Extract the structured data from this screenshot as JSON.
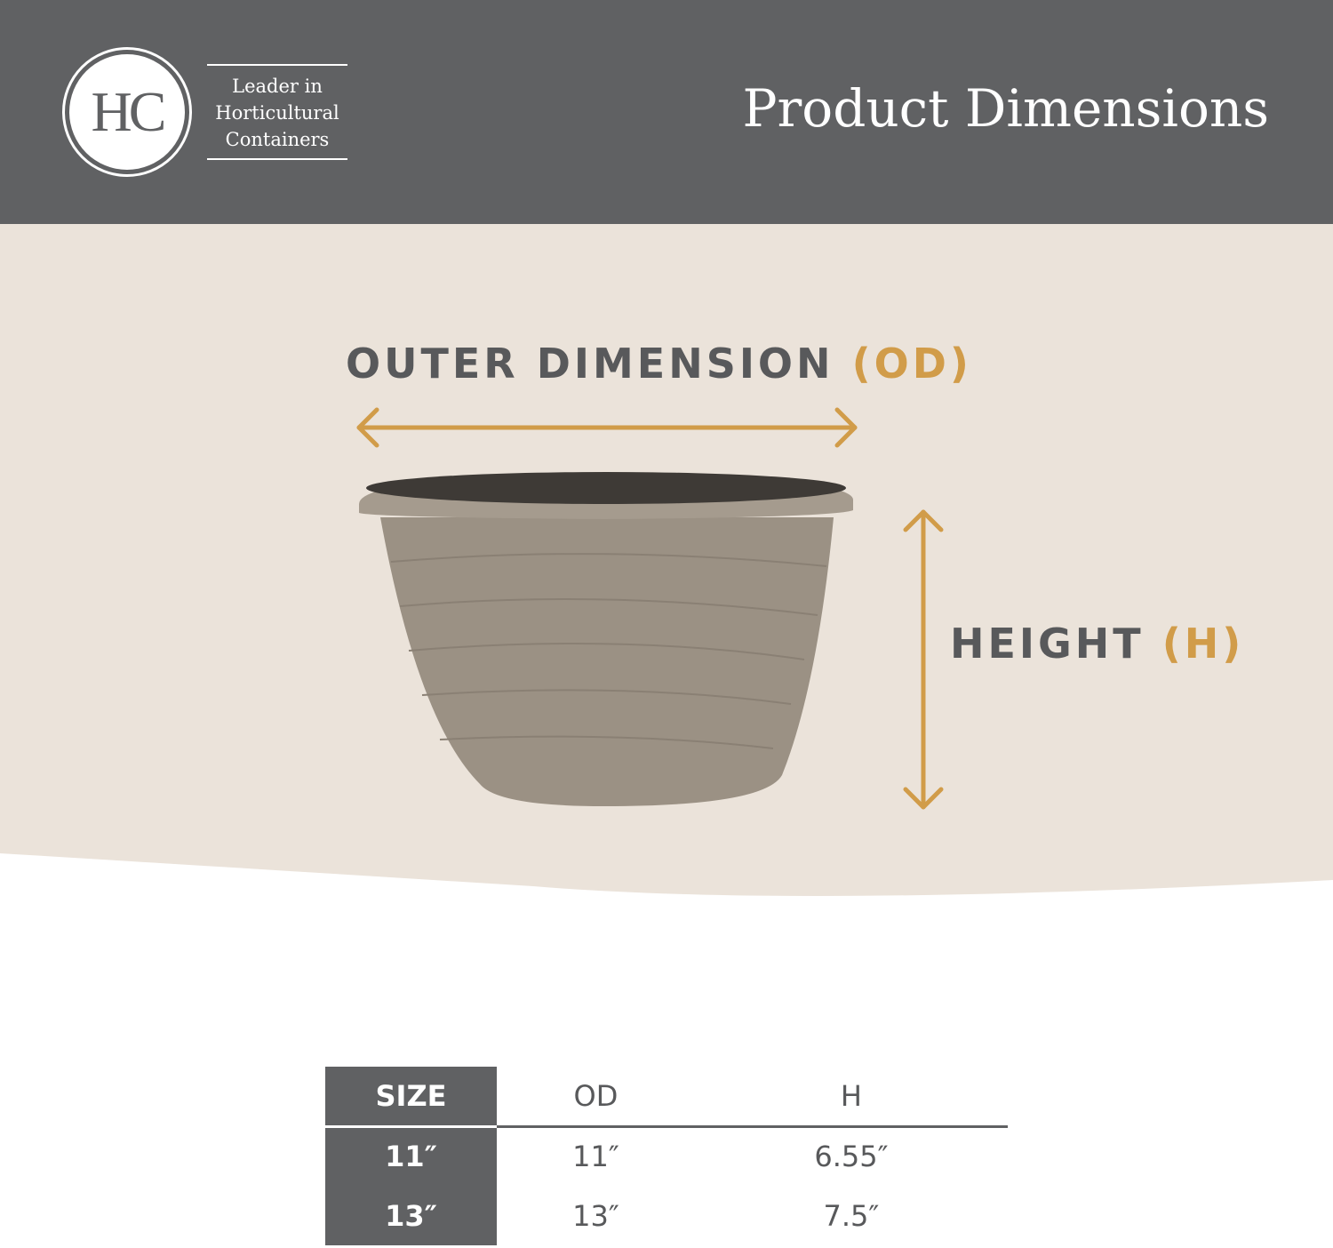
{
  "header": {
    "logo_text": "HC",
    "tagline": [
      "Leader in",
      "Horticultural",
      "Containers"
    ],
    "title": "Product Dimensions"
  },
  "diagram": {
    "od_label": "OUTER DIMENSION",
    "od_abbr": "(OD)",
    "h_label": "HEIGHT",
    "h_abbr": "(H)"
  },
  "colors": {
    "header": "#606163",
    "beige": "#ebe3da",
    "accent": "#d19c49",
    "pot": "#9b9184"
  },
  "table": {
    "headers": [
      "SIZE",
      "OD",
      "H"
    ],
    "rows": [
      [
        "11″",
        "11″",
        "6.55″"
      ],
      [
        "13″",
        "13″",
        "7.5″"
      ]
    ]
  }
}
